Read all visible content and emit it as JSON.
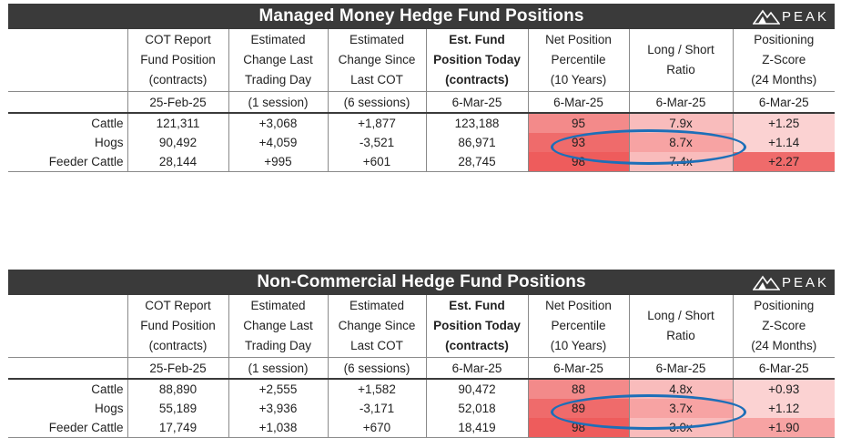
{
  "panels": [
    {
      "title": "Managed Money Hedge Fund Positions",
      "logo_text": "PEAK",
      "columns": [
        {
          "l1": "COT Report",
          "l2": "Fund Position",
          "l3": "(contracts)",
          "bold": false
        },
        {
          "l1": "Estimated",
          "l2": "Change Last",
          "l3": "Trading Day",
          "bold": false
        },
        {
          "l1": "Estimated",
          "l2": "Change Since",
          "l3": "Last COT",
          "bold": false
        },
        {
          "l1": "Est. Fund",
          "l2": "Position Today",
          "l3": "(contracts)",
          "bold": true
        },
        {
          "l1": "Net Position",
          "l2": "Percentile",
          "l3": "(10 Years)",
          "bold": false
        },
        {
          "l1": "Long / Short",
          "l2": "Ratio",
          "l3": "",
          "bold": false
        },
        {
          "l1": "Positioning",
          "l2": "Z-Score",
          "l3": "(24 Months)",
          "bold": false
        }
      ],
      "dates": [
        "25-Feb-25",
        "(1 session)",
        "(6 sessions)",
        "6-Mar-25",
        "6-Mar-25",
        "6-Mar-25",
        "6-Mar-25"
      ],
      "rows": [
        {
          "label": "Cattle",
          "cells": [
            "121,311",
            "+3,068",
            "+1,877",
            "123,188",
            "95",
            "7.9x",
            "+1.25"
          ]
        },
        {
          "label": "Hogs",
          "cells": [
            "90,492",
            "+4,059",
            "-3,521",
            "86,971",
            "93",
            "8.7x",
            "+1.14"
          ]
        },
        {
          "label": "Feeder Cattle",
          "cells": [
            "28,144",
            "+995",
            "+601",
            "28,745",
            "98",
            "7.4x",
            "+2.27"
          ]
        }
      ]
    },
    {
      "title": "Non-Commercial Hedge Fund Positions",
      "logo_text": "PEAK",
      "columns": [
        {
          "l1": "COT Report",
          "l2": "Fund Position",
          "l3": "(contracts)",
          "bold": false
        },
        {
          "l1": "Estimated",
          "l2": "Change Last",
          "l3": "Trading Day",
          "bold": false
        },
        {
          "l1": "Estimated",
          "l2": "Change Since",
          "l3": "Last COT",
          "bold": false
        },
        {
          "l1": "Est. Fund",
          "l2": "Position Today",
          "l3": "(contracts)",
          "bold": true
        },
        {
          "l1": "Net Position",
          "l2": "Percentile",
          "l3": "(10 Years)",
          "bold": false
        },
        {
          "l1": "Long / Short",
          "l2": "Ratio",
          "l3": "",
          "bold": false
        },
        {
          "l1": "Positioning",
          "l2": "Z-Score",
          "l3": "(24 Months)",
          "bold": false
        }
      ],
      "dates": [
        "25-Feb-25",
        "(1 session)",
        "(6 sessions)",
        "6-Mar-25",
        "6-Mar-25",
        "6-Mar-25",
        "6-Mar-25"
      ],
      "rows": [
        {
          "label": "Cattle",
          "cells": [
            "88,890",
            "+2,555",
            "+1,582",
            "90,472",
            "88",
            "4.8x",
            "+0.93"
          ]
        },
        {
          "label": "Hogs",
          "cells": [
            "55,189",
            "+3,936",
            "-3,171",
            "52,018",
            "89",
            "3.7x",
            "+1.12"
          ]
        },
        {
          "label": "Feeder Cattle",
          "cells": [
            "17,749",
            "+1,038",
            "+670",
            "18,419",
            "98",
            "3.0x",
            "+1.90"
          ]
        }
      ]
    }
  ],
  "heat_colors": {
    "strong": "#ee5c5c",
    "medium": "#f38a8a",
    "light": "#fbd2d2",
    "highlight_ellipse": "#1d6fb8",
    "banner": "#3a3a3a"
  }
}
